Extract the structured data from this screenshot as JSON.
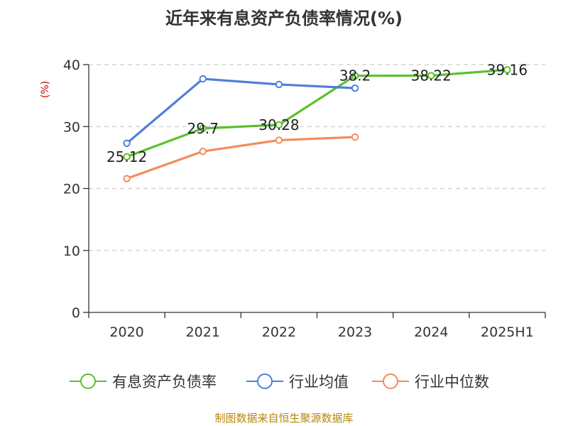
{
  "chart_data": {
    "type": "line",
    "title": "近年来有息资产负债率情况(%)",
    "ylabel": "(%)",
    "categories": [
      "2020",
      "2021",
      "2022",
      "2023",
      "2024",
      "2025H1"
    ],
    "ylim": [
      0,
      40
    ],
    "yticks": [
      0,
      10,
      20,
      30,
      40
    ],
    "grid": true,
    "legend_position": "bottom",
    "series": [
      {
        "name": "有息资产负债率",
        "color": "#5ac02e",
        "values": [
          25.12,
          29.7,
          30.28,
          38.2,
          38.22,
          39.16
        ],
        "labels": [
          "25.12",
          "29.7",
          "30.28",
          "38.2",
          "38.22",
          "39.16"
        ]
      },
      {
        "name": "行业均值",
        "color": "#4f7fdc",
        "values": [
          27.3,
          37.7,
          36.8,
          36.2,
          null,
          null
        ]
      },
      {
        "name": "行业中位数",
        "color": "#f28c5a",
        "values": [
          21.6,
          26.0,
          27.8,
          28.3,
          null,
          null
        ]
      }
    ]
  },
  "colors": {
    "unit_label": "#cc0000",
    "source_note": "#b8860b",
    "grid": "#cccccc",
    "axis": "#333333"
  },
  "source_note": "制图数据来自恒生聚源数据库"
}
